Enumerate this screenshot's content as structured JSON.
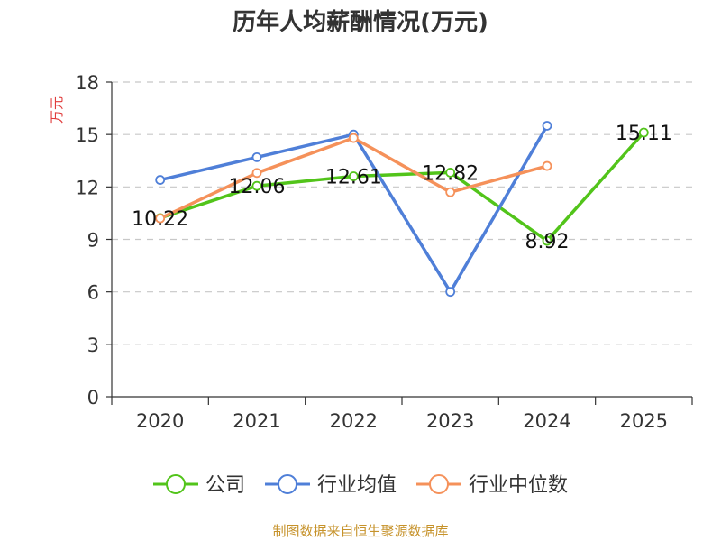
{
  "chart_data": {
    "type": "line",
    "title": "历年人均薪酬情况(万元)",
    "ylabel": "万元",
    "xlabel": "",
    "categories": [
      "2020",
      "2021",
      "2022",
      "2023",
      "2024",
      "2025"
    ],
    "ylim": [
      0,
      18
    ],
    "yticks": [
      0,
      3,
      6,
      9,
      12,
      15,
      18
    ],
    "grid": "horizontal dashed",
    "legend_position": "bottom",
    "series": [
      {
        "name": "公司",
        "color": "#52c41a",
        "values": [
          10.22,
          12.06,
          12.61,
          12.82,
          8.92,
          15.11
        ],
        "labels": [
          "10.22",
          "12.06",
          "12.61",
          "12.82",
          "8.92",
          "15.11"
        ]
      },
      {
        "name": "行业均值",
        "color": "#4f7fd8",
        "values": [
          12.4,
          13.7,
          15.0,
          6.0,
          15.5,
          null
        ]
      },
      {
        "name": "行业中位数",
        "color": "#f5915a",
        "values": [
          10.2,
          12.8,
          14.8,
          11.7,
          13.2,
          null
        ]
      }
    ]
  },
  "colors": {
    "ylabel": "#e03c3c",
    "axis": "#333333",
    "grid": "#c8c8c8",
    "tick_text": "#333333",
    "footer": "#c6922a"
  },
  "footer": {
    "source": "制图数据来自恒生聚源数据库"
  }
}
